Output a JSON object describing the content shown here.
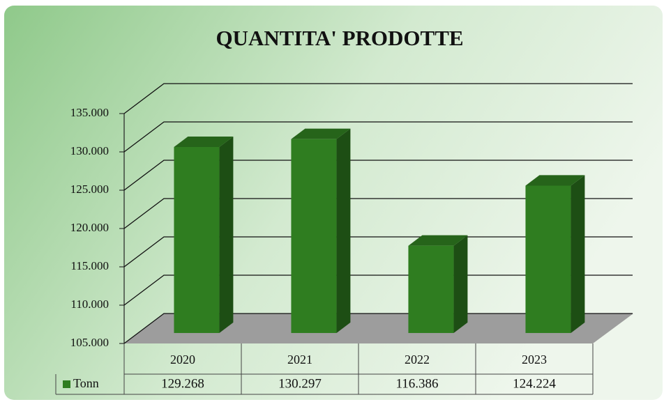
{
  "chart_data": {
    "type": "bar3d",
    "title": "QUANTITA' PRODOTTE",
    "categories": [
      "2020",
      "2021",
      "2022",
      "2023"
    ],
    "series": [
      {
        "name": "Tonn",
        "color": "#2f7d20",
        "values": [
          129268,
          130297,
          116386,
          124224
        ],
        "value_labels": [
          "129.268",
          "130.297",
          "116.386",
          "124.224"
        ]
      }
    ],
    "ylim": [
      105000,
      135000
    ],
    "yticks": [
      {
        "value": 105000,
        "label": "105.000"
      },
      {
        "value": 110000,
        "label": "110.000"
      },
      {
        "value": 115000,
        "label": "115.000"
      },
      {
        "value": 120000,
        "label": "120.000"
      },
      {
        "value": 125000,
        "label": "125.000"
      },
      {
        "value": 130000,
        "label": "130.000"
      },
      {
        "value": 135000,
        "label": "135.000"
      }
    ],
    "grid": true
  }
}
